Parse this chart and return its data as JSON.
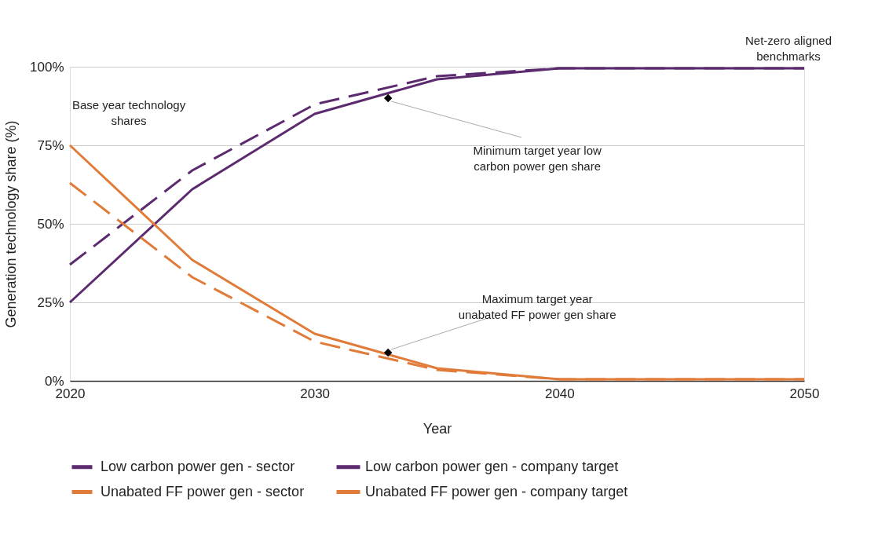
{
  "chart_data": {
    "type": "line",
    "xlabel": "Year",
    "ylabel": "Generation technology share (%)",
    "x": [
      2020,
      2025,
      2030,
      2035,
      2040,
      2050
    ],
    "series": [
      {
        "name": "Low carbon power gen - sector",
        "color": "#5c2a6e",
        "line_style": "dashed",
        "values": [
          37,
          67,
          88,
          97,
          99.5,
          99.5
        ]
      },
      {
        "name": "Low carbon power gen - company target",
        "color": "#5c2a6e",
        "line_style": "solid",
        "values": [
          25,
          61,
          85,
          96,
          99.5,
          99.5
        ]
      },
      {
        "name": "Unabated FF power gen - sector",
        "color": "#e07b39",
        "line_style": "dashed",
        "values": [
          63,
          33,
          12.5,
          3.5,
          0.5,
          0.5
        ]
      },
      {
        "name": "Unabated FF power gen - company target",
        "color": "#e07b39",
        "line_style": "solid",
        "values": [
          75,
          38.5,
          15,
          4,
          0.5,
          0.5
        ]
      },
      {
        "type": "scatter",
        "color": "#000000",
        "marker": "diamond",
        "x": [
          2033,
          2033
        ],
        "values": [
          90,
          9
        ]
      }
    ],
    "xlim": [
      2020,
      2050
    ],
    "xticks": [
      2020,
      2030,
      2040,
      2050
    ],
    "ylim": [
      0,
      100
    ],
    "yticks": [
      {
        "value": 0,
        "label": "0%"
      },
      {
        "value": 25,
        "label": "25%"
      },
      {
        "value": 50,
        "label": "50%"
      },
      {
        "value": 75,
        "label": "75%"
      },
      {
        "value": 100,
        "label": "100%"
      }
    ],
    "grid": "y",
    "legend": "bottom",
    "annotations": [
      "Base year technology shares",
      "Net-zero aligned benchmarks",
      {
        "text": "Minimum target year low carbon power gen share",
        "x": 2033,
        "y": 90
      },
      {
        "text": "Maximum target year unabated FF power gen share",
        "x": 2033,
        "y": 9
      }
    ]
  }
}
